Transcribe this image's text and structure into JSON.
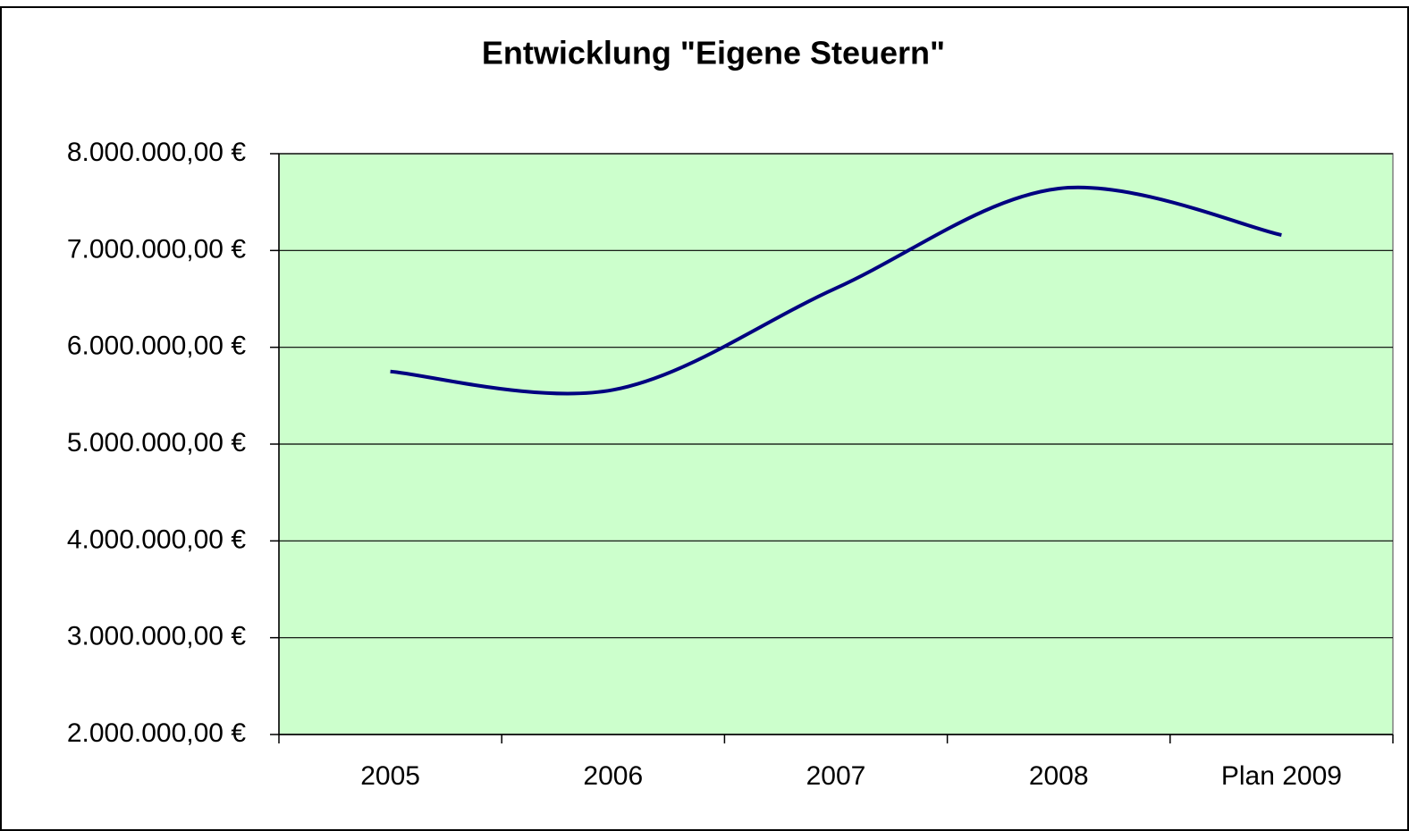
{
  "chart_data": {
    "type": "line",
    "title": "Entwicklung \"Eigene Steuern\"",
    "categories": [
      "2005",
      "2006",
      "2007",
      "2008",
      "Plan 2009"
    ],
    "series": [
      {
        "name": "Eigene Steuern",
        "color": "#000080",
        "values": [
          5750000,
          5560000,
          6610000,
          7640000,
          7160000
        ]
      }
    ],
    "ylim": [
      2000000,
      8000000
    ],
    "yticks": [
      {
        "value": 2000000,
        "label": "2.000.000,00 €"
      },
      {
        "value": 3000000,
        "label": "3.000.000,00 €"
      },
      {
        "value": 4000000,
        "label": "4.000.000,00 €"
      },
      {
        "value": 5000000,
        "label": "5.000.000,00 €"
      },
      {
        "value": 6000000,
        "label": "6.000.000,00 €"
      },
      {
        "value": 7000000,
        "label": "7.000.000,00 €"
      },
      {
        "value": 8000000,
        "label": "8.000.000,00 €"
      }
    ],
    "grid": true,
    "smooth": true,
    "plot_background": "#ccffcc"
  }
}
